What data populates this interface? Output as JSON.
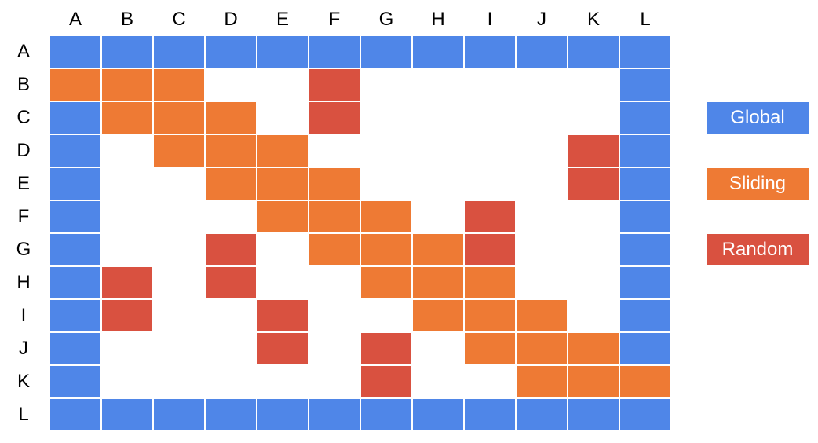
{
  "headers": {
    "columns": [
      "A",
      "B",
      "C",
      "D",
      "E",
      "F",
      "G",
      "H",
      "I",
      "J",
      "K",
      "L"
    ],
    "rows": [
      "A",
      "B",
      "C",
      "D",
      "E",
      "F",
      "G",
      "H",
      "I",
      "J",
      "K",
      "L"
    ]
  },
  "colors": {
    "G": "#4f86e8",
    "S": "#ee7a34",
    "R": "#d95140"
  },
  "grid": [
    "GGGGGGGGGGGG",
    "SSS..R.....G",
    "GSSS.R.....G",
    "G.SSS.....RG",
    "G..SSS....RG",
    "G...SSS.R..G",
    "G..R.SSSR..G",
    "GR.R..SSS..G",
    "GR..R..SSS.G",
    "G...R.R.SSSG",
    "G.....R..SSS",
    "GGGGGGGGGGGG"
  ],
  "legend": [
    {
      "key": "G",
      "label": "Global"
    },
    {
      "key": "S",
      "label": "Sliding"
    },
    {
      "key": "R",
      "label": "Random"
    }
  ]
}
